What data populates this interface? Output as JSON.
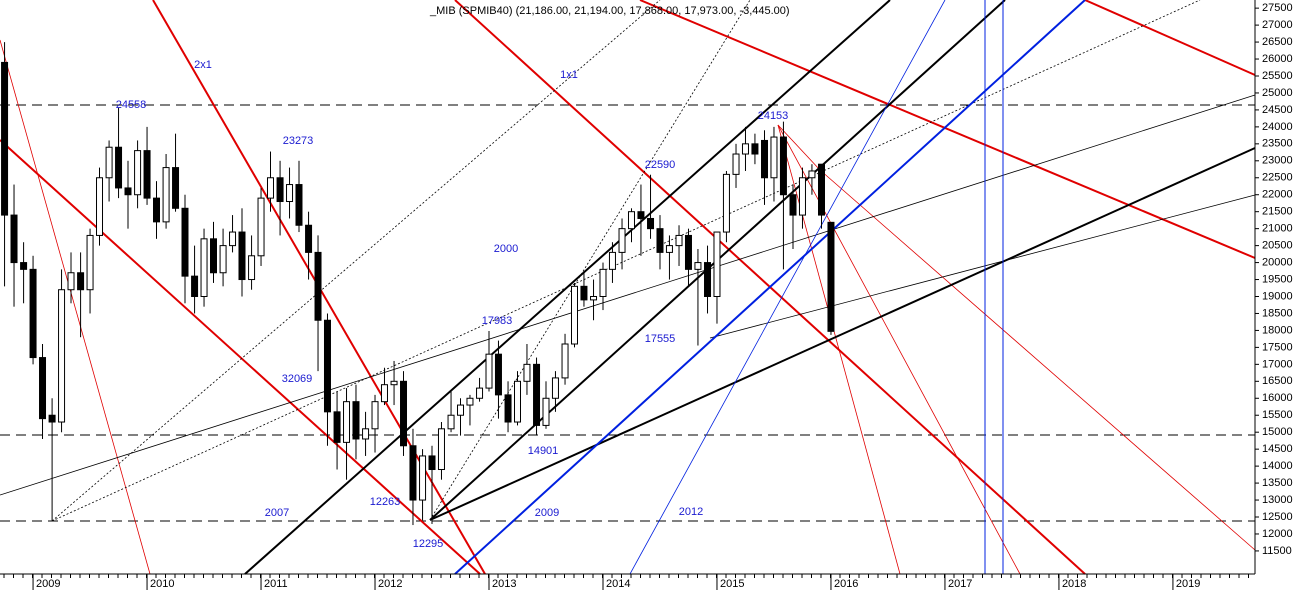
{
  "chart_data": {
    "type": "candlestick",
    "title": "_MIB (SPMIB40) (21,186.00, 21,194.00, 17,868.00, 17,973.00, -3,445.00)",
    "x": [
      2008.75,
      2008.833,
      2008.917,
      2009,
      2009.083,
      2009.167,
      2009.25,
      2009.333,
      2009.417,
      2009.5,
      2009.583,
      2009.667,
      2009.75,
      2009.833,
      2009.917,
      2010,
      2010.083,
      2010.167,
      2010.25,
      2010.333,
      2010.417,
      2010.5,
      2010.583,
      2010.667,
      2010.75,
      2010.833,
      2010.917,
      2011,
      2011.083,
      2011.167,
      2011.25,
      2011.333,
      2011.417,
      2011.5,
      2011.583,
      2011.667,
      2011.75,
      2011.833,
      2011.917,
      2012,
      2012.083,
      2012.167,
      2012.25,
      2012.333,
      2012.417,
      2012.5,
      2012.583,
      2012.667,
      2012.75,
      2012.833,
      2012.917,
      2013,
      2013.083,
      2013.167,
      2013.25,
      2013.333,
      2013.417,
      2013.5,
      2013.583,
      2013.667,
      2013.75,
      2013.833,
      2013.917,
      2014,
      2014.083,
      2014.167,
      2014.25,
      2014.333,
      2014.417,
      2014.5,
      2014.583,
      2014.667,
      2014.75,
      2014.833,
      2014.917,
      2015,
      2015.083,
      2015.167,
      2015.25,
      2015.333,
      2015.417,
      2015.5,
      2015.583,
      2015.667,
      2015.75,
      2015.833,
      2015.917,
      2016
    ],
    "open": [
      25900,
      21400,
      20000,
      19800,
      17200,
      15500,
      15300,
      19200,
      19700,
      19200,
      20800,
      22500,
      23400,
      22200,
      22000,
      23300,
      21900,
      21200,
      22800,
      21600,
      19600,
      19000,
      20700,
      19700,
      20500,
      20900,
      19500,
      20200,
      21900,
      22500,
      21800,
      22300,
      21100,
      20300,
      18300,
      15600,
      14700,
      15900,
      14800,
      15100,
      15900,
      16400,
      16500,
      14600,
      13000,
      14300,
      13900,
      15100,
      15500,
      15800,
      16000,
      16300,
      17300,
      16100,
      15300,
      16500,
      17000,
      15200,
      16000,
      16600,
      17600,
      19300,
      18900,
      19000,
      19800,
      20300,
      21000,
      21500,
      21300,
      21000,
      20300,
      20500,
      20800,
      19800,
      20000,
      19000,
      20900,
      22600,
      23200,
      23500,
      23600,
      22500,
      23700,
      22000,
      21400,
      22500,
      22900,
      21186
    ],
    "high": [
      26500,
      22300,
      20600,
      20200,
      17600,
      16000,
      19800,
      20300,
      20300,
      21000,
      22800,
      23600,
      24558,
      23000,
      23600,
      24000,
      22400,
      23200,
      23800,
      22000,
      20500,
      21000,
      21200,
      21000,
      21400,
      21600,
      20800,
      22200,
      23273,
      23000,
      22800,
      23000,
      21500,
      20800,
      18500,
      16200,
      16300,
      16400,
      15600,
      16100,
      16900,
      17100,
      16800,
      15100,
      14500,
      14600,
      15300,
      16200,
      16000,
      16100,
      16600,
      17983,
      17700,
      16500,
      16800,
      17600,
      17200,
      16500,
      16800,
      17900,
      19400,
      19700,
      19500,
      20000,
      20600,
      21300,
      21600,
      22300,
      22590,
      21400,
      20800,
      21100,
      21000,
      20400,
      20500,
      20900,
      22700,
      23500,
      24000,
      23800,
      23900,
      24000,
      24153,
      22300,
      22800,
      22900,
      22900,
      21194
    ],
    "low": [
      19300,
      18700,
      18800,
      17000,
      14800,
      12400,
      15000,
      18800,
      17800,
      18500,
      20500,
      21800,
      21900,
      21000,
      21600,
      21700,
      20700,
      21000,
      21500,
      18800,
      18500,
      18700,
      19400,
      19300,
      20300,
      19000,
      19200,
      19900,
      21500,
      20800,
      21300,
      20900,
      19500,
      16800,
      14600,
      13900,
      13600,
      14200,
      14300,
      14400,
      15800,
      15800,
      14300,
      12263,
      12400,
      12295,
      13600,
      15000,
      14900,
      15200,
      15900,
      16200,
      15400,
      15000,
      15200,
      16100,
      14901,
      15100,
      15600,
      16400,
      17500,
      18700,
      18300,
      18600,
      19400,
      19800,
      20600,
      20200,
      20700,
      19800,
      19500,
      19900,
      19300,
      17555,
      18500,
      18200,
      20600,
      22200,
      22700,
      22900,
      21700,
      21800,
      19800,
      20400,
      21000,
      22000,
      21000,
      17868
    ],
    "close": [
      21400,
      20000,
      19800,
      17200,
      15400,
      15300,
      19200,
      19700,
      19200,
      20800,
      22500,
      23400,
      22200,
      22000,
      23300,
      21900,
      21200,
      22800,
      21600,
      19600,
      19000,
      20700,
      19700,
      20500,
      20900,
      19500,
      20200,
      21900,
      22500,
      21800,
      22300,
      21100,
      20300,
      18300,
      15600,
      14700,
      15900,
      14800,
      15100,
      15900,
      16400,
      16500,
      14600,
      13000,
      14300,
      13900,
      15100,
      15500,
      15800,
      16000,
      16300,
      17300,
      16100,
      15300,
      16500,
      17000,
      15200,
      16000,
      16600,
      17600,
      19300,
      18900,
      19000,
      19800,
      20300,
      21000,
      21500,
      21300,
      21000,
      20300,
      20500,
      20800,
      19800,
      20000,
      19000,
      20900,
      22600,
      23200,
      23500,
      23200,
      22500,
      23700,
      22000,
      21400,
      22500,
      22700,
      21400,
      17973
    ],
    "xlim": [
      2008.71,
      2019.72
    ],
    "xticks": [
      2009,
      2010,
      2011,
      2012,
      2013,
      2014,
      2015,
      2016,
      2017,
      2018,
      2019
    ],
    "ylim": [
      10820,
      27740
    ],
    "yticks": [
      11500,
      12000,
      12500,
      13000,
      13500,
      14000,
      14500,
      15000,
      15500,
      16000,
      16500,
      17000,
      17500,
      18000,
      18500,
      19000,
      19500,
      20000,
      20500,
      21000,
      21500,
      22000,
      22500,
      23000,
      23500,
      24000,
      24500,
      25000,
      25500,
      26000,
      26500,
      27000,
      27500
    ],
    "annotations": [
      "2x1",
      "1x1",
      "24558",
      "23273",
      "24153",
      "22590",
      "2000",
      "17983",
      "17555",
      "32069",
      "14901",
      "12263",
      "2007",
      "2009",
      "2012",
      "12295"
    ]
  }
}
